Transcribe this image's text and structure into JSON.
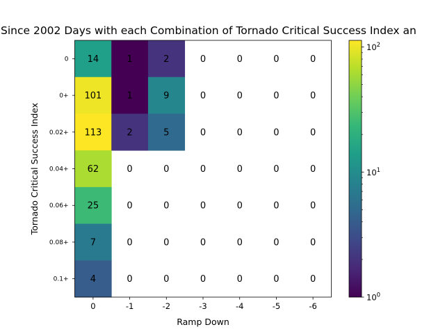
{
  "chart_data": {
    "type": "heatmap",
    "title": "Since 2002 Days with each Combination of Tornado Critical Success Index an",
    "xlabel": "Ramp Down",
    "ylabel": "Tornado Critical Success Index",
    "x_categories": [
      "0",
      "-1",
      "-2",
      "-3",
      "-4",
      "-5",
      "-6"
    ],
    "y_categories": [
      "0",
      "0+",
      "0.02+",
      "0.04+",
      "0.06+",
      "0.08+",
      "0.1+"
    ],
    "values": [
      [
        14,
        1,
        2,
        0,
        0,
        0,
        0
      ],
      [
        101,
        1,
        9,
        0,
        0,
        0,
        0
      ],
      [
        113,
        2,
        5,
        0,
        0,
        0,
        0
      ],
      [
        62,
        0,
        0,
        0,
        0,
        0,
        0
      ],
      [
        25,
        0,
        0,
        0,
        0,
        0,
        0
      ],
      [
        7,
        0,
        0,
        0,
        0,
        0,
        0
      ],
      [
        4,
        0,
        0,
        0,
        0,
        0,
        0
      ]
    ],
    "color_scale": "log",
    "colormap": "viridis",
    "zero_color": "#ffffff",
    "colorbar": {
      "range": [
        1,
        113
      ],
      "ticks": [
        {
          "value": 1,
          "base": "10",
          "exp": "0"
        },
        {
          "value": 10,
          "base": "10",
          "exp": "1"
        },
        {
          "value": 100,
          "base": "10",
          "exp": "2"
        }
      ]
    }
  }
}
